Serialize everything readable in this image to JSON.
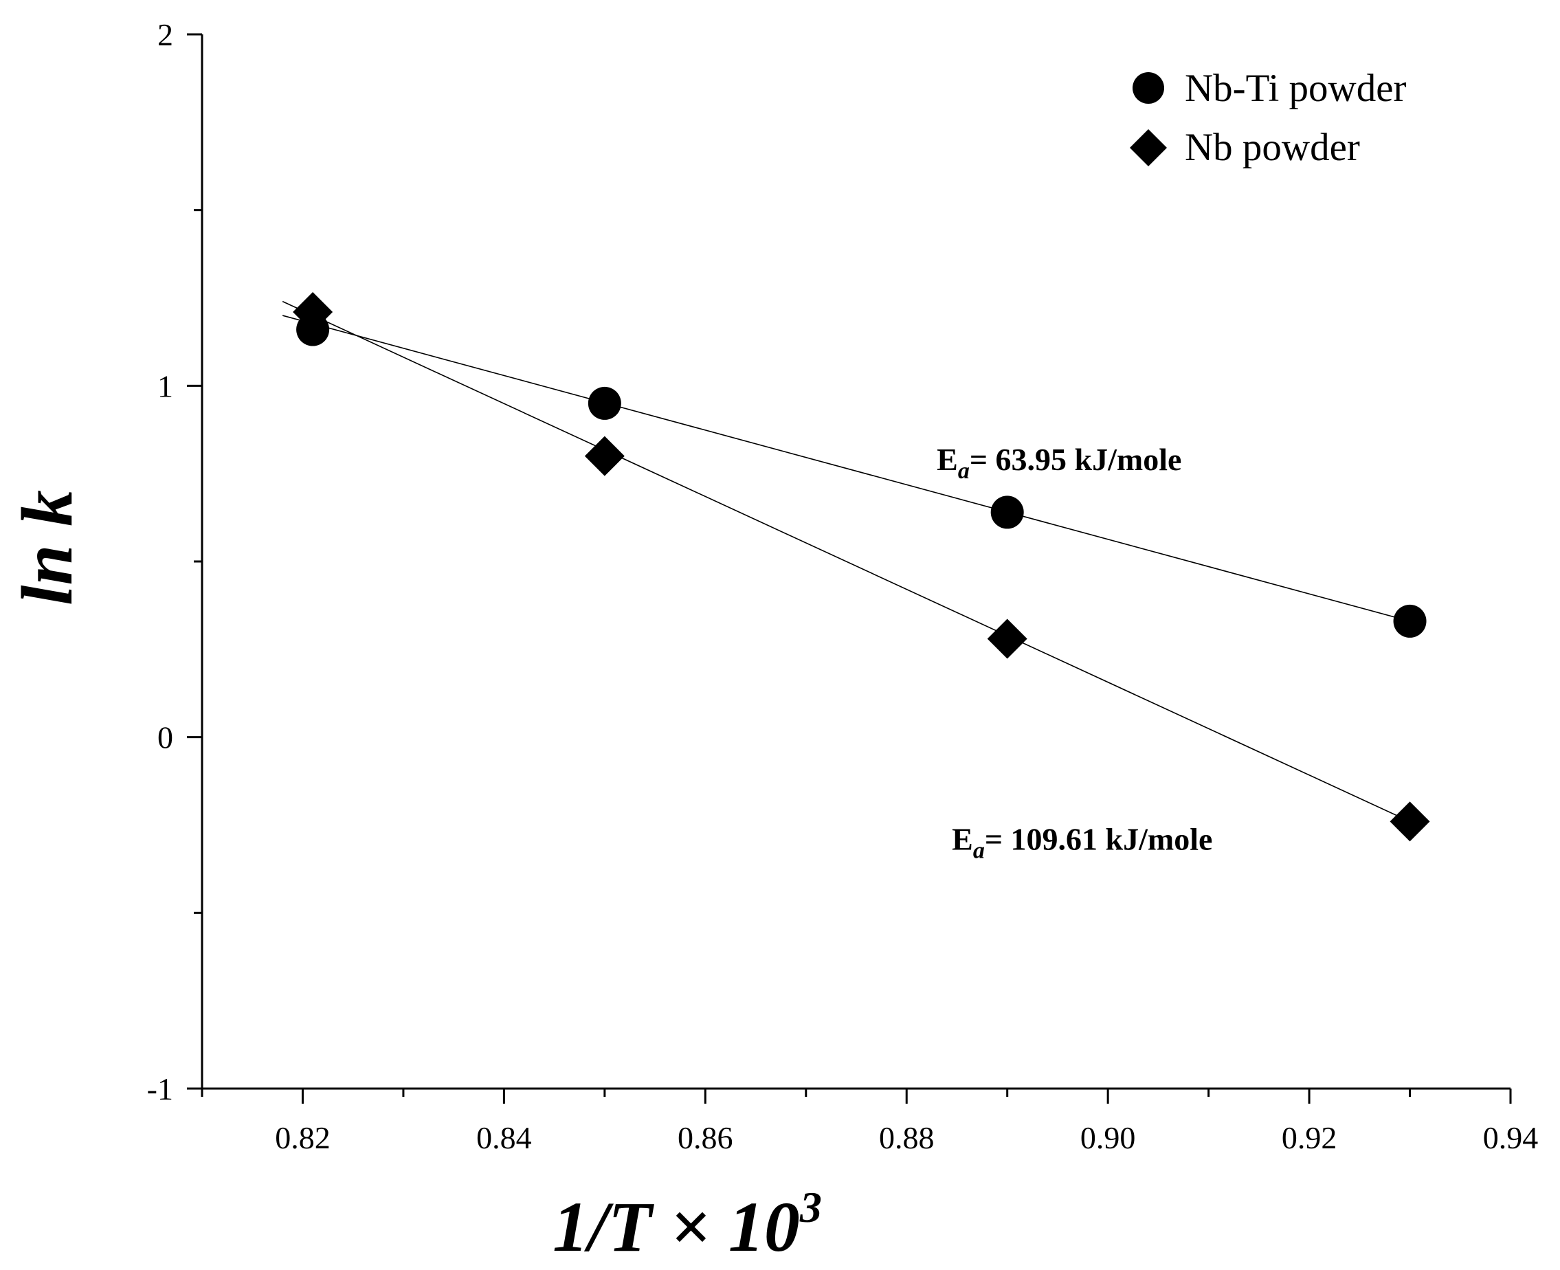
{
  "chart_data": {
    "type": "scatter",
    "title": "",
    "xlabel": "1/T × 10",
    "xlabel_superscript": "3",
    "ylabel": "ln k",
    "xlim": [
      0.81,
      0.94
    ],
    "ylim": [
      -1,
      2
    ],
    "x_major_ticks": [
      0.82,
      0.84,
      0.86,
      0.88,
      0.9,
      0.92,
      0.94
    ],
    "x_tick_labels": [
      "0.82",
      "0.84",
      "0.86",
      "0.88",
      "0.90",
      "0.92",
      "0.94"
    ],
    "x_minor_ticks": [
      0.81,
      0.83,
      0.85,
      0.87,
      0.89,
      0.91,
      0.93
    ],
    "y_major_ticks": [
      -1,
      0,
      1,
      2
    ],
    "y_tick_labels": [
      "-1",
      "0",
      "1",
      "2"
    ],
    "y_minor_ticks": [
      -0.5,
      0.5,
      1.5
    ],
    "grid": false,
    "legend_position": "top-right",
    "series": [
      {
        "name": "Nb-Ti powder",
        "marker": "circle",
        "x": [
          0.821,
          0.85,
          0.89,
          0.93
        ],
        "y": [
          1.16,
          0.95,
          0.64,
          0.33
        ],
        "fit": {
          "x_start": 0.818,
          "x_end": 0.93,
          "y_start": 1.2,
          "y_end": 0.33
        },
        "annotation": {
          "prefix": "E",
          "subscript": "a",
          "text": "= 63.95 kJ/mole",
          "anchor_x": 0.883,
          "anchor_y": 0.76
        }
      },
      {
        "name": "Nb powder",
        "marker": "diamond",
        "x": [
          0.821,
          0.85,
          0.89,
          0.93
        ],
        "y": [
          1.21,
          0.8,
          0.28,
          -0.24
        ],
        "fit": {
          "x_start": 0.818,
          "x_end": 0.93,
          "y_start": 1.24,
          "y_end": -0.24
        },
        "annotation": {
          "prefix": "E",
          "subscript": "a",
          "text": "= 109.61 kJ/mole",
          "anchor_x": 0.8845,
          "anchor_y": -0.32
        }
      }
    ]
  }
}
